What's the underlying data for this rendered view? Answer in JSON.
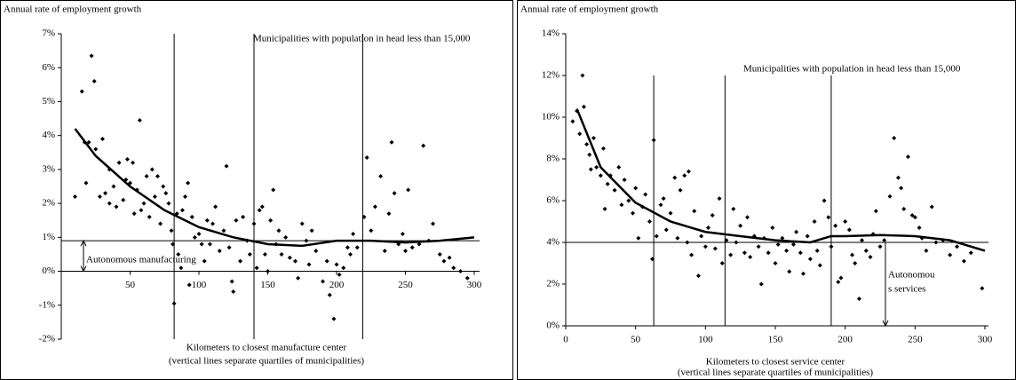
{
  "chart_data": [
    {
      "type": "scatter",
      "title": "Annual rate of employment growth",
      "subtitle": "Municipalities with population in head less than 15,000",
      "xlabel": [
        "Kilometers to closest manufacture center",
        "(vertical lines separate quartiles of municipalities)"
      ],
      "annotation": [
        "Autonomous manufacturing"
      ],
      "xlim": [
        0,
        300
      ],
      "xticks": [
        50,
        100,
        150,
        200,
        250,
        300
      ],
      "ylim": [
        -2,
        7
      ],
      "yticks": [
        {
          "value": -2,
          "label": "-2%"
        },
        {
          "value": -1,
          "label": "-1%"
        },
        {
          "value": 0,
          "label": "0%"
        },
        {
          "value": 1,
          "label": "1%"
        },
        {
          "value": 2,
          "label": "2%"
        },
        {
          "value": 3,
          "label": "3%"
        },
        {
          "value": 4,
          "label": "4%"
        },
        {
          "value": 5,
          "label": "5%"
        },
        {
          "value": 6,
          "label": "6%"
        },
        {
          "value": 7,
          "label": "7%"
        }
      ],
      "vlines": [
        82,
        140,
        219
      ],
      "hline": 0.9,
      "series": [
        {
          "type": "scatter",
          "color": "#000000",
          "x": [
            10,
            15,
            17,
            18,
            22,
            24,
            20,
            25,
            28,
            30,
            32,
            35,
            35,
            38,
            40,
            42,
            45,
            47,
            48,
            50,
            52,
            53,
            55,
            57,
            58,
            60,
            62,
            64,
            66,
            68,
            70,
            72,
            74,
            76,
            78,
            80,
            81,
            82,
            84,
            85,
            87,
            88,
            90,
            92,
            93,
            95,
            97,
            100,
            102,
            104,
            106,
            108,
            110,
            112,
            115,
            118,
            120,
            122,
            124,
            125,
            127,
            130,
            132,
            135,
            137,
            140,
            142,
            144,
            146,
            148,
            150,
            152,
            154,
            156,
            158,
            160,
            163,
            166,
            170,
            172,
            175,
            178,
            180,
            182,
            185,
            190,
            193,
            195,
            198,
            200,
            202,
            205,
            208,
            210,
            212,
            215,
            220,
            222,
            225,
            228,
            232,
            235,
            238,
            240,
            242,
            245,
            248,
            250,
            252,
            255,
            260,
            263,
            267,
            270,
            275,
            278,
            282,
            285,
            290,
            295
          ],
          "values": [
            2.2,
            5.3,
            3.8,
            2.6,
            6.35,
            5.6,
            3.8,
            3.6,
            2.2,
            3.9,
            2.3,
            3.0,
            2.0,
            2.5,
            1.9,
            3.2,
            2.1,
            2.7,
            3.3,
            2.6,
            3.2,
            1.7,
            2.4,
            4.45,
            1.8,
            2.0,
            2.8,
            1.6,
            3.0,
            2.2,
            2.8,
            1.4,
            2.5,
            2.3,
            2.0,
            1.2,
            0.8,
            -0.95,
            1.7,
            0.5,
            0.1,
            1.8,
            2.2,
            2.6,
            -0.4,
            1.6,
            1.0,
            1.1,
            0.8,
            0.3,
            1.5,
            0.8,
            1.4,
            1.9,
            0.6,
            1.2,
            3.1,
            0.7,
            -0.3,
            -0.6,
            1.5,
            0.3,
            1.6,
            0.9,
            0.5,
            1.4,
            0.1,
            1.8,
            1.9,
            0.5,
            0.0,
            1.5,
            2.4,
            0.8,
            1.2,
            0.5,
            1.0,
            0.4,
            0.3,
            -0.2,
            1.4,
            0.9,
            0.2,
            1.2,
            0.6,
            -0.3,
            0.3,
            -0.7,
            -1.4,
            0.2,
            -0.1,
            0.1,
            0.7,
            0.5,
            1.1,
            0.7,
            1.6,
            3.35,
            1.2,
            1.9,
            2.8,
            0.6,
            1.7,
            3.8,
            2.3,
            0.8,
            1.1,
            0.6,
            2.4,
            0.7,
            0.8,
            3.7,
            0.9,
            1.4,
            0.5,
            0.3,
            0.4,
            0.1,
            0.0,
            -0.2
          ]
        },
        {
          "type": "line",
          "color": "#000000",
          "x": [
            10,
            25,
            50,
            75,
            100,
            125,
            150,
            175,
            200,
            225,
            250,
            275,
            300
          ],
          "values": [
            4.2,
            3.4,
            2.5,
            1.8,
            1.3,
            1.0,
            0.8,
            0.75,
            0.9,
            0.9,
            0.85,
            0.9,
            1.0
          ]
        }
      ]
    },
    {
      "type": "scatter",
      "title": "Annual rate of employment growth",
      "subtitle": "Municipalities with population in head less than 15,000",
      "xlabel": [
        "Kilometers to closest service center",
        "(vertical lines separate quartiles of municipalities)"
      ],
      "annotation": [
        "Autonomou",
        "s services"
      ],
      "xlim": [
        0,
        300
      ],
      "xticks": [
        0,
        50,
        100,
        150,
        200,
        250,
        300
      ],
      "ylim": [
        0,
        14
      ],
      "yticks": [
        {
          "value": 0,
          "label": "0%"
        },
        {
          "value": 2,
          "label": "2%"
        },
        {
          "value": 4,
          "label": "4%"
        },
        {
          "value": 6,
          "label": "6%"
        },
        {
          "value": 8,
          "label": "8%"
        },
        {
          "value": 10,
          "label": "10%"
        },
        {
          "value": 12,
          "label": "12%"
        },
        {
          "value": 14,
          "label": "14%"
        }
      ],
      "vlines": [
        63,
        114,
        190
      ],
      "hline": 4,
      "series": [
        {
          "type": "scatter",
          "color": "#000000",
          "x": [
            5,
            8,
            10,
            12,
            13,
            15,
            17,
            18,
            20,
            22,
            25,
            27,
            28,
            30,
            32,
            35,
            38,
            40,
            42,
            45,
            48,
            50,
            52,
            55,
            57,
            60,
            62,
            63,
            65,
            68,
            70,
            72,
            75,
            78,
            80,
            82,
            85,
            87,
            88,
            90,
            92,
            95,
            97,
            100,
            102,
            105,
            107,
            110,
            112,
            115,
            118,
            120,
            122,
            125,
            128,
            130,
            132,
            135,
            138,
            140,
            142,
            145,
            148,
            150,
            152,
            155,
            158,
            160,
            163,
            165,
            168,
            170,
            173,
            175,
            178,
            180,
            182,
            185,
            188,
            190,
            193,
            195,
            197,
            200,
            203,
            205,
            207,
            210,
            212,
            215,
            218,
            220,
            222,
            225,
            228,
            232,
            235,
            238,
            240,
            242,
            245,
            248,
            250,
            253,
            255,
            258,
            262,
            265,
            270,
            275,
            280,
            285,
            290,
            298
          ],
          "values": [
            9.8,
            10.3,
            9.2,
            12.0,
            10.5,
            8.7,
            8.2,
            7.5,
            9.0,
            7.6,
            7.2,
            8.5,
            5.6,
            6.8,
            7.2,
            6.5,
            7.6,
            5.8,
            7.0,
            6.0,
            5.4,
            6.6,
            4.2,
            5.7,
            6.3,
            5.0,
            3.2,
            8.9,
            4.3,
            5.8,
            6.1,
            4.6,
            5.4,
            7.1,
            4.2,
            6.5,
            7.2,
            4.0,
            7.4,
            3.4,
            5.5,
            2.4,
            4.3,
            3.8,
            4.7,
            5.3,
            3.7,
            6.1,
            3.0,
            4.1,
            3.4,
            5.6,
            4.0,
            4.8,
            3.5,
            5.2,
            3.3,
            4.3,
            3.8,
            2.0,
            4.2,
            3.5,
            4.7,
            3.0,
            3.9,
            4.2,
            3.6,
            2.6,
            3.9,
            4.5,
            3.5,
            2.5,
            4.3,
            3.2,
            5.0,
            3.6,
            2.9,
            6.0,
            5.2,
            3.8,
            4.8,
            2.1,
            2.3,
            5.0,
            4.6,
            3.4,
            3.0,
            1.3,
            4.1,
            3.6,
            3.3,
            4.4,
            5.5,
            3.8,
            4.1,
            6.2,
            9.0,
            7.1,
            6.6,
            5.6,
            8.1,
            5.3,
            5.2,
            4.7,
            4.2,
            3.6,
            5.7,
            4.0,
            4.1,
            3.4,
            3.8,
            3.1,
            3.5,
            1.8
          ]
        },
        {
          "type": "line",
          "color": "#000000",
          "x": [
            8,
            25,
            50,
            75,
            100,
            125,
            150,
            175,
            190,
            200,
            225,
            250,
            275,
            300
          ],
          "values": [
            10.4,
            7.6,
            5.9,
            5.0,
            4.5,
            4.3,
            4.1,
            4.0,
            4.3,
            4.3,
            4.35,
            4.3,
            4.1,
            3.6
          ]
        }
      ]
    }
  ]
}
